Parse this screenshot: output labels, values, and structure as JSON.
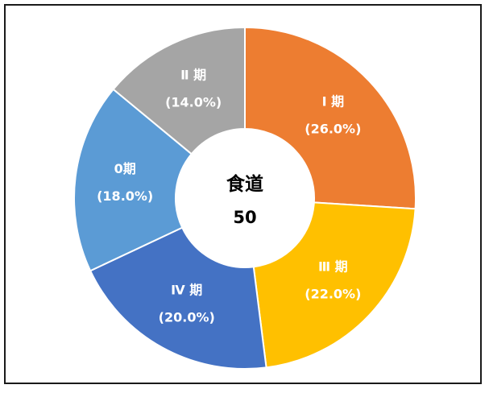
{
  "chart_data": {
    "type": "pie",
    "variant": "donut",
    "center_label": "食道",
    "center_value": "50",
    "slices": [
      {
        "name": "Ⅰ 期",
        "value": 26.0,
        "label": "(26.0%)",
        "color": "#ED7D31"
      },
      {
        "name": "Ⅲ 期",
        "value": 22.0,
        "label": "(22.0%)",
        "color": "#FFC000"
      },
      {
        "name": "Ⅳ 期",
        "value": 20.0,
        "label": "(20.0%)",
        "color": "#4472C4"
      },
      {
        "name": "0期",
        "value": 18.0,
        "label": "(18.0%)",
        "color": "#5B9BD5"
      },
      {
        "name": "Ⅱ 期",
        "value": 14.0,
        "label": "(14.0%)",
        "color": "#A5A5A5"
      }
    ],
    "legend": "none",
    "start_angle": "12 o'clock",
    "direction": "clockwise"
  }
}
